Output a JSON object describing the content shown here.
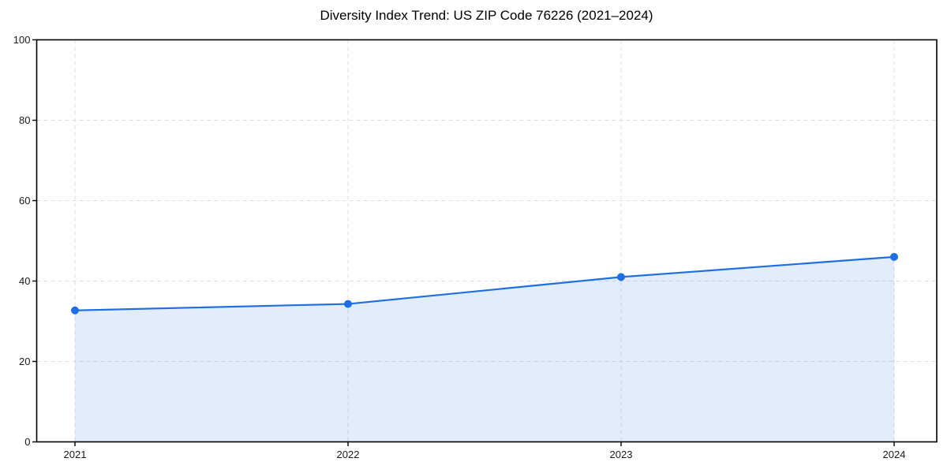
{
  "title": "Diversity Index Trend: US ZIP Code 76226 (2021–2024)",
  "chart_data": {
    "type": "line",
    "title": "Diversity Index Trend: US ZIP Code 76226 (2021–2024)",
    "x": [
      "2021",
      "2022",
      "2023",
      "2024"
    ],
    "series": [
      {
        "name": "Diversity Index",
        "values": [
          32.7,
          34.3,
          41.0,
          46.0
        ]
      }
    ],
    "xlabel": "",
    "ylabel": "",
    "ylim": [
      0,
      100
    ],
    "yticks": [
      0,
      20,
      40,
      60,
      80,
      100
    ],
    "grid": true,
    "grid_style": "dashed",
    "legend_position": "none",
    "marker": "circle",
    "area_fill": true
  },
  "colors": {
    "line": "#1f6fe0",
    "marker": "#1f6fe0",
    "area_fill": "#1f6fe0",
    "area_fill_opacity": 0.13,
    "grid": "#dedede",
    "spine": "#000000",
    "tick_label": "#1a1a1a",
    "background": "#ffffff"
  }
}
